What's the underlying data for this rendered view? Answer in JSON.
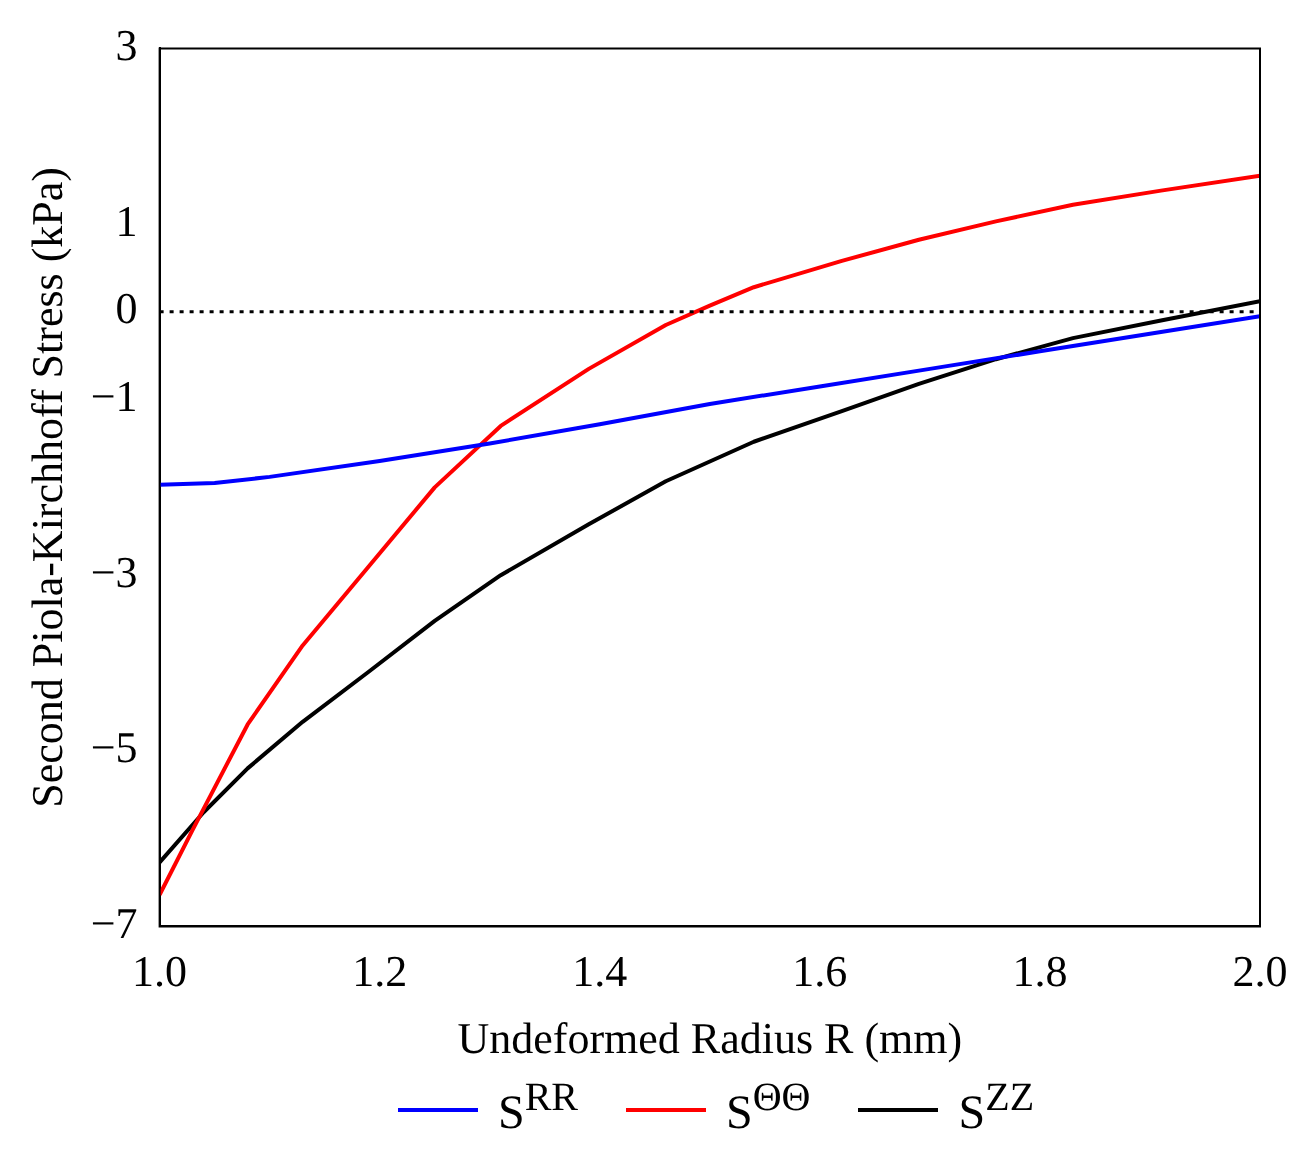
{
  "chart_data": {
    "type": "line",
    "xlabel": "Undeformed Radius R (mm)",
    "ylabel": "Second Piola-Kirchhoff Stress (kPa)",
    "xlim": [
      1.0,
      2.0
    ],
    "xticks": [
      {
        "value": 1.0,
        "label": "1.0"
      },
      {
        "value": 1.2,
        "label": "1.2"
      },
      {
        "value": 1.4,
        "label": "1.4"
      },
      {
        "value": 1.6,
        "label": "1.6"
      },
      {
        "value": 1.8,
        "label": "1.8"
      },
      {
        "value": 2.0,
        "label": "2.0"
      }
    ],
    "ylim": [
      -7,
      3
    ],
    "yticks": [
      {
        "value": -7,
        "label": "−7"
      },
      {
        "value": -5,
        "label": "−5"
      },
      {
        "value": -3,
        "label": "−3"
      },
      {
        "value": -1,
        "label": "−1"
      },
      0,
      1,
      3
    ],
    "grid": false,
    "legend": "bottom",
    "marker": "none",
    "line_style": "solid",
    "ref_lines": [
      {
        "axis": "y",
        "value": 0,
        "color": "#000000",
        "line_style": "dotted"
      }
    ],
    "series": [
      {
        "name": "S$^{RR}$",
        "color": "#0000ff",
        "x": [
          1.0,
          1.05,
          1.1,
          1.2,
          1.3,
          1.4,
          1.5,
          1.6,
          1.7,
          1.8,
          1.9,
          2.0
        ],
        "values": [
          -1.97,
          -1.95,
          -1.88,
          -1.7,
          -1.5,
          -1.28,
          -1.05,
          -0.85,
          -0.65,
          -0.45,
          -0.25,
          -0.05
        ]
      },
      {
        "name": "S$^{ΘΘ}$",
        "color": "#ff0000",
        "x": [
          1.0,
          1.03,
          1.08,
          1.13,
          1.19,
          1.25,
          1.31,
          1.39,
          1.46,
          1.5,
          1.54,
          1.62,
          1.69,
          1.76,
          1.83,
          1.91,
          2.0
        ],
        "values": [
          -6.64,
          -5.9,
          -4.7,
          -3.8,
          -2.9,
          -2.0,
          -1.3,
          -0.65,
          -0.15,
          0.07,
          0.28,
          0.58,
          0.82,
          1.03,
          1.22,
          1.38,
          1.55
        ]
      },
      {
        "name": "S$^{ZZ}$",
        "color": "#000000",
        "x": [
          1.0,
          1.04,
          1.08,
          1.13,
          1.19,
          1.25,
          1.31,
          1.39,
          1.46,
          1.54,
          1.62,
          1.69,
          1.76,
          1.83,
          1.91,
          2.0
        ],
        "values": [
          -6.27,
          -5.7,
          -5.2,
          -4.67,
          -4.1,
          -3.52,
          -3.0,
          -2.42,
          -1.93,
          -1.48,
          -1.13,
          -0.82,
          -0.54,
          -0.3,
          -0.1,
          0.12
        ]
      }
    ]
  }
}
